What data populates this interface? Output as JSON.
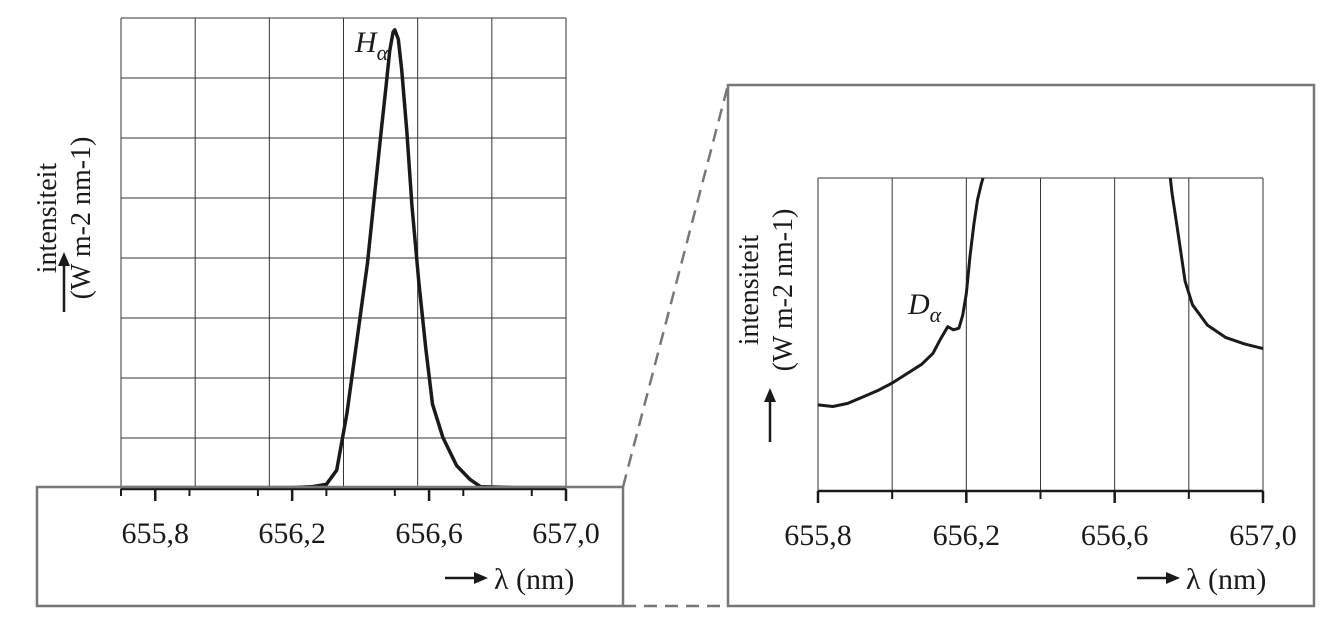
{
  "chart_data": [
    {
      "type": "line",
      "panel": "overview",
      "xlabel": "λ (nm)",
      "ylabel_line1": "intensiteit",
      "ylabel_line2": "(W m-2 nm-1)",
      "xlim": [
        655.7,
        657.0
      ],
      "xticks": [
        655.8,
        656.2,
        656.6,
        657.0
      ],
      "xtick_labels": [
        "655,8",
        "656,2",
        "656,6",
        "657,0"
      ],
      "grid": true,
      "annotations": [
        {
          "text": "H",
          "sub": "α"
        }
      ],
      "series": [
        {
          "x": [
            655.7,
            656.2,
            656.26,
            656.3,
            656.33,
            656.36,
            656.39,
            656.42,
            656.44,
            656.46,
            656.475,
            656.485,
            656.495,
            656.5,
            656.51,
            656.52,
            656.535,
            656.55,
            656.57,
            656.59,
            656.61,
            656.64,
            656.66,
            656.68,
            656.7,
            656.72,
            656.75,
            656.85,
            657.0
          ],
          "y": [
            0.3,
            0.3,
            0.5,
            1.0,
            4.0,
            16.0,
            32.0,
            48.0,
            62.0,
            76.0,
            86.0,
            93.0,
            97.0,
            97.5,
            95.5,
            89.0,
            76.0,
            60.0,
            44.0,
            30.0,
            18.0,
            11.0,
            8.0,
            5.0,
            3.5,
            2.0,
            0.5,
            0.3,
            0.3
          ]
        }
      ]
    },
    {
      "type": "line",
      "panel": "zoom",
      "xlabel": "λ (nm)",
      "ylabel_line1": "intensiteit",
      "ylabel_line2": "(W m-2 nm-1)",
      "xlim": [
        655.8,
        657.0
      ],
      "xticks": [
        655.8,
        656.2,
        656.6,
        657.0
      ],
      "xtick_labels": [
        "655,8",
        "656,2",
        "656,6",
        "657,0"
      ],
      "grid": true,
      "annotations": [
        {
          "text": "D",
          "sub": "α"
        }
      ],
      "series": [
        {
          "x": [
            655.8,
            655.84,
            655.88,
            655.92,
            655.96,
            656.0,
            656.04,
            656.08,
            656.11,
            656.13,
            656.15,
            656.165,
            656.18,
            656.19,
            656.2,
            656.21,
            656.22,
            656.23,
            656.24,
            656.245
          ],
          "y": [
            27.5,
            27.0,
            28.0,
            30.0,
            32.0,
            34.5,
            37.5,
            40.5,
            44.0,
            48.5,
            52.5,
            51.5,
            52.0,
            56.0,
            63.0,
            75.0,
            85.0,
            93.0,
            98.0,
            100.0
          ]
        },
        {
          "x": [
            656.75,
            656.755,
            656.765,
            656.775,
            656.79,
            656.81,
            656.85,
            656.9,
            656.95,
            657.0
          ],
          "y": [
            100.0,
            95.0,
            87.0,
            79.0,
            67.0,
            59.5,
            53.0,
            49.0,
            47.0,
            45.5
          ]
        }
      ]
    }
  ]
}
